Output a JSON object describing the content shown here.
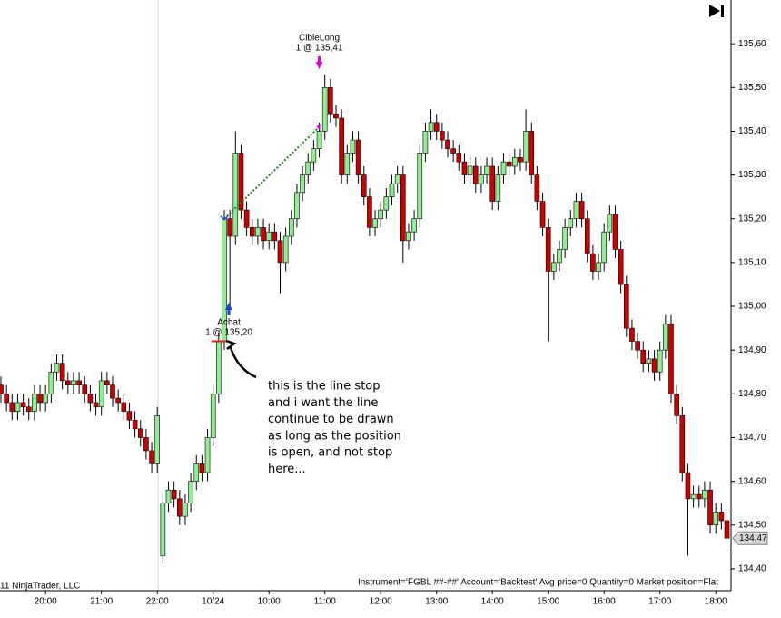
{
  "chart_data": {
    "type": "candlestick",
    "categories": [
      null,
      null,
      null,
      null,
      null,
      null,
      null,
      null,
      "20:00",
      null,
      null,
      null,
      null,
      null,
      null,
      null,
      null,
      null,
      "21:00",
      null,
      null,
      null,
      null,
      null,
      null,
      null,
      null,
      null,
      "22:00",
      null,
      null,
      null,
      null,
      null,
      null,
      null,
      null,
      null,
      "10/24",
      null,
      null,
      null,
      null,
      null,
      null,
      null,
      null,
      null,
      "10:00",
      null,
      null,
      null,
      null,
      null,
      null,
      null,
      null,
      null,
      "11:00",
      null,
      null,
      null,
      null,
      null,
      null,
      null,
      null,
      null,
      "12:00",
      null,
      null,
      null,
      null,
      null,
      null,
      null,
      null,
      null,
      "13:00",
      null,
      null,
      null,
      null,
      null,
      null,
      null,
      null,
      null,
      "14:00",
      null,
      null,
      null,
      null,
      null,
      null,
      null,
      null,
      null,
      "15:00",
      null,
      null,
      null,
      null,
      null,
      null,
      null,
      null,
      null,
      "16:00",
      null,
      null,
      null,
      null,
      null,
      null,
      null,
      null,
      null,
      "17:00",
      null,
      null,
      null,
      null,
      null,
      null,
      null,
      null,
      null,
      "18:00",
      null,
      null
    ],
    "open": [
      134.82,
      134.8,
      134.78,
      134.76,
      134.78,
      134.77,
      134.76,
      134.8,
      134.78,
      134.8,
      134.85,
      134.87,
      134.83,
      134.82,
      134.83,
      134.82,
      134.8,
      134.78,
      134.77,
      134.83,
      134.82,
      134.79,
      134.78,
      134.76,
      134.74,
      134.72,
      134.7,
      134.67,
      134.64,
      134.43,
      134.55,
      134.58,
      134.56,
      134.52,
      134.55,
      134.6,
      134.64,
      134.62,
      134.7,
      134.8,
      134.92,
      135.2,
      135.16,
      135.35,
      135.22,
      135.18,
      135.16,
      135.18,
      135.15,
      135.17,
      135.15,
      135.1,
      135.16,
      135.2,
      135.26,
      135.3,
      135.33,
      135.36,
      135.4,
      135.5,
      135.44,
      135.43,
      135.3,
      135.35,
      135.38,
      135.3,
      135.25,
      135.18,
      135.2,
      135.22,
      135.25,
      135.28,
      135.3,
      135.15,
      135.17,
      135.2,
      135.35,
      135.4,
      135.42,
      135.4,
      135.38,
      135.36,
      135.35,
      135.33,
      135.3,
      135.32,
      135.28,
      135.3,
      135.32,
      135.24,
      135.3,
      135.33,
      135.32,
      135.34,
      135.33,
      135.4,
      135.3,
      135.24,
      135.18,
      135.08,
      135.1,
      135.13,
      135.18,
      135.2,
      135.24,
      135.2,
      135.12,
      135.08,
      135.1,
      135.17,
      135.21,
      135.13,
      135.05,
      134.95,
      134.92,
      134.9,
      134.87,
      134.88,
      134.85,
      134.9,
      134.96,
      134.8,
      134.75,
      134.62,
      134.56,
      134.57,
      134.56,
      134.58,
      134.5,
      134.53,
      134.51
    ],
    "high": [
      134.84,
      134.82,
      134.8,
      134.8,
      134.8,
      134.79,
      134.82,
      134.82,
      134.82,
      134.87,
      134.89,
      134.89,
      134.85,
      134.85,
      134.85,
      134.84,
      134.82,
      134.8,
      134.85,
      134.85,
      134.84,
      134.81,
      134.8,
      134.78,
      134.76,
      134.74,
      134.72,
      134.69,
      134.77,
      134.57,
      134.6,
      134.6,
      134.58,
      134.57,
      134.62,
      134.66,
      134.66,
      134.72,
      134.82,
      134.94,
      135.22,
      135.22,
      135.4,
      135.37,
      135.24,
      135.2,
      135.2,
      135.2,
      135.19,
      135.19,
      135.17,
      135.18,
      135.22,
      135.28,
      135.32,
      135.35,
      135.38,
      135.42,
      135.53,
      135.52,
      135.46,
      135.45,
      135.37,
      135.4,
      135.4,
      135.32,
      135.27,
      135.22,
      135.24,
      135.27,
      135.3,
      135.32,
      135.32,
      135.19,
      135.22,
      135.37,
      135.42,
      135.45,
      135.44,
      135.42,
      135.4,
      135.38,
      135.37,
      135.35,
      135.34,
      135.34,
      135.32,
      135.34,
      135.34,
      135.32,
      135.35,
      135.35,
      135.36,
      135.36,
      135.45,
      135.42,
      135.32,
      135.26,
      135.2,
      135.12,
      135.15,
      135.2,
      135.22,
      135.26,
      135.26,
      135.22,
      135.14,
      135.12,
      135.19,
      135.23,
      135.23,
      135.15,
      135.07,
      134.97,
      134.94,
      134.92,
      134.9,
      134.9,
      134.92,
      134.98,
      134.98,
      134.82,
      134.77,
      134.64,
      134.59,
      134.59,
      134.6,
      134.6,
      134.55,
      134.55,
      134.53
    ],
    "low": [
      134.78,
      134.76,
      134.74,
      134.74,
      134.75,
      134.74,
      134.74,
      134.76,
      134.76,
      134.78,
      134.83,
      134.81,
      134.8,
      134.8,
      134.8,
      134.78,
      134.76,
      134.75,
      134.75,
      134.8,
      134.77,
      134.76,
      134.74,
      134.72,
      134.7,
      134.68,
      134.65,
      134.62,
      134.62,
      134.41,
      134.53,
      134.54,
      134.5,
      134.5,
      134.53,
      134.58,
      134.6,
      134.6,
      134.68,
      134.78,
      134.9,
      135.0,
      135.14,
      135.2,
      135.16,
      135.14,
      135.14,
      135.13,
      135.13,
      135.13,
      135.03,
      135.08,
      135.14,
      135.18,
      135.24,
      135.28,
      135.31,
      135.34,
      135.38,
      135.42,
      135.41,
      135.28,
      135.28,
      135.33,
      135.28,
      135.23,
      135.16,
      135.16,
      135.18,
      135.2,
      135.23,
      135.26,
      135.1,
      135.13,
      135.15,
      135.18,
      135.33,
      135.38,
      135.38,
      135.36,
      135.34,
      135.33,
      135.31,
      135.28,
      135.28,
      135.26,
      135.26,
      135.28,
      135.22,
      135.22,
      135.28,
      135.3,
      135.3,
      135.31,
      135.31,
      135.28,
      135.22,
      135.16,
      134.92,
      135.06,
      135.08,
      135.11,
      135.16,
      135.18,
      135.18,
      135.1,
      135.06,
      135.06,
      135.08,
      135.15,
      135.11,
      135.03,
      134.93,
      134.9,
      134.88,
      134.85,
      134.85,
      134.83,
      134.83,
      134.88,
      134.78,
      134.73,
      134.6,
      134.43,
      134.54,
      134.54,
      134.54,
      134.48,
      134.48,
      134.49,
      134.45
    ],
    "close": [
      134.8,
      134.78,
      134.76,
      134.78,
      134.77,
      134.76,
      134.8,
      134.78,
      134.8,
      134.85,
      134.87,
      134.83,
      134.82,
      134.83,
      134.82,
      134.8,
      134.78,
      134.77,
      134.83,
      134.82,
      134.79,
      134.78,
      134.76,
      134.74,
      134.72,
      134.7,
      134.67,
      134.64,
      134.75,
      134.55,
      134.58,
      134.56,
      134.52,
      134.55,
      134.6,
      134.64,
      134.62,
      134.7,
      134.8,
      134.92,
      135.2,
      135.16,
      135.35,
      135.22,
      135.18,
      135.16,
      135.18,
      135.15,
      135.17,
      135.15,
      135.1,
      135.16,
      135.2,
      135.26,
      135.3,
      135.33,
      135.36,
      135.4,
      135.5,
      135.44,
      135.43,
      135.3,
      135.35,
      135.38,
      135.3,
      135.25,
      135.18,
      135.2,
      135.22,
      135.25,
      135.28,
      135.3,
      135.15,
      135.17,
      135.2,
      135.35,
      135.4,
      135.42,
      135.4,
      135.38,
      135.36,
      135.35,
      135.33,
      135.3,
      135.32,
      135.28,
      135.3,
      135.32,
      135.24,
      135.3,
      135.33,
      135.32,
      135.34,
      135.33,
      135.4,
      135.3,
      135.24,
      135.18,
      135.08,
      135.1,
      135.13,
      135.18,
      135.2,
      135.24,
      135.2,
      135.12,
      135.08,
      135.1,
      135.17,
      135.21,
      135.13,
      135.05,
      134.95,
      134.92,
      134.9,
      134.87,
      134.88,
      134.85,
      134.9,
      134.96,
      134.8,
      134.75,
      134.62,
      134.56,
      134.57,
      134.56,
      134.58,
      134.5,
      134.53,
      134.51,
      134.47
    ],
    "up_color": "#90ee90",
    "down_color": "#cc0000",
    "ylim": [
      134.35,
      135.7
    ],
    "yticks": [
      {
        "value": 134.4,
        "label": "134,40"
      },
      {
        "value": 134.5,
        "label": "134,50"
      },
      {
        "value": 134.6,
        "label": "134,60"
      },
      {
        "value": 134.7,
        "label": "134,70"
      },
      {
        "value": 134.8,
        "label": "134,80"
      },
      {
        "value": 134.9,
        "label": "134,90"
      },
      {
        "value": 135.0,
        "label": "135,00"
      },
      {
        "value": 135.1,
        "label": "135,10"
      },
      {
        "value": 135.2,
        "label": "135,20"
      },
      {
        "value": 135.3,
        "label": "135,30"
      },
      {
        "value": 135.4,
        "label": "135,40"
      },
      {
        "value": 135.5,
        "label": "135,50"
      },
      {
        "value": 135.6,
        "label": "135,60"
      }
    ],
    "grid": false,
    "last_price": {
      "value": 134.47,
      "label": "134,47"
    },
    "entry": {
      "label": "Achat",
      "text": "1 @ 135,20",
      "price": 135.2,
      "bar": 40
    },
    "exit": {
      "label": "CibleLong",
      "text": "1 @ 135,41",
      "price": 135.41,
      "bar": 57
    },
    "stop": {
      "price": 134.92,
      "bar": 39
    },
    "annotation": [
      "this is the line stop",
      "and i want the line",
      "continue to be drawn",
      "as long as the position",
      "is open, and not stop",
      "here..."
    ],
    "status": "Instrument='FGBL ##-##' Account='Backtest' Avg price=0 Quantity=0 Market position=Flat",
    "copyright": "11 NinjaTrader, LLC"
  }
}
